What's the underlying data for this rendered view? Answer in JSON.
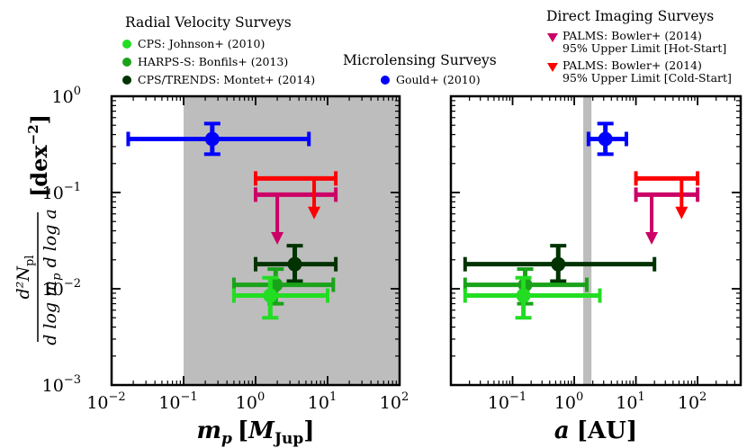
{
  "chart_data": [
    {
      "type": "scatter",
      "xlabel": "m_p [M_Jup]",
      "xlabel_main": "m",
      "xlabel_sub": "p",
      "xlabel_bracket_open": "[",
      "xlabel_unit": "M",
      "xlabel_unit_sub": "Jup",
      "xlabel_bracket_close": "]",
      "xscale": "log",
      "yscale": "log",
      "xlim": [
        0.01,
        100
      ],
      "ylim": [
        0.001,
        1
      ],
      "xticks": [
        {
          "base": "10",
          "exp": "−2"
        },
        {
          "base": "10",
          "exp": "−1"
        },
        {
          "base": "10",
          "exp": "0"
        },
        {
          "base": "10",
          "exp": "1"
        },
        {
          "base": "10",
          "exp": "2"
        }
      ],
      "yticks": [
        {
          "base": "10",
          "exp": "0"
        },
        {
          "base": "10",
          "exp": "−1"
        },
        {
          "base": "10",
          "exp": "−2"
        },
        {
          "base": "10",
          "exp": "−3"
        }
      ],
      "shaded_region": {
        "x": [
          0.1,
          100
        ],
        "color": "#bdbdbd"
      },
      "points": [
        {
          "series": "Gould+ (2010)",
          "x": 0.25,
          "xerr": [
            0.017,
            5.5
          ],
          "y": 0.36,
          "yerr": [
            0.25,
            0.52
          ],
          "color": "#0000ff",
          "upper_limit": false
        },
        {
          "series": "Montet+ (2014)",
          "x": 3.5,
          "xerr": [
            1.0,
            13.0
          ],
          "y": 0.018,
          "yerr": [
            0.012,
            0.028
          ],
          "color": "#003300",
          "upper_limit": false
        },
        {
          "series": "Bonfils+ (2013)",
          "x": 1.9,
          "xerr": [
            0.5,
            12.0
          ],
          "y": 0.011,
          "yerr": [
            0.007,
            0.016
          ],
          "color": "#1aa31a",
          "upper_limit": false
        },
        {
          "series": "Johnson+ (2010)",
          "x": 1.6,
          "xerr": [
            0.5,
            10.0
          ],
          "y": 0.0085,
          "yerr": [
            0.005,
            0.013
          ],
          "color": "#22dd22",
          "upper_limit": false
        },
        {
          "series": "Bowler+ (2014) Hot-Start",
          "x": 2.0,
          "xerr": [
            1.0,
            13.0
          ],
          "y": 0.095,
          "arrow_to": 0.03,
          "color": "#cc0066",
          "upper_limit": true
        },
        {
          "series": "Bowler+ (2014) Cold-Start",
          "x": 6.5,
          "xerr": [
            1.0,
            13.0
          ],
          "y": 0.14,
          "arrow_to": 0.055,
          "color": "#ff0000",
          "upper_limit": true
        }
      ]
    },
    {
      "type": "scatter",
      "xlabel": "a [AU]",
      "xlabel_main": "a",
      "xlabel_bracket_open": "[",
      "xlabel_unit": "AU",
      "xlabel_bracket_close": "]",
      "xscale": "log",
      "yscale": "log",
      "xlim": [
        0.01,
        500
      ],
      "ylim": [
        0.001,
        1
      ],
      "xticks": [
        {
          "base": "10",
          "exp": "−1"
        },
        {
          "base": "10",
          "exp": "0"
        },
        {
          "base": "10",
          "exp": "1"
        },
        {
          "base": "10",
          "exp": "2"
        }
      ],
      "shaded_region": {
        "x": [
          1.4,
          1.9
        ],
        "color": "#bdbdbd"
      },
      "points": [
        {
          "series": "Gould+ (2010)",
          "x": 3.2,
          "xerr": [
            1.7,
            7.0
          ],
          "y": 0.36,
          "yerr": [
            0.25,
            0.52
          ],
          "color": "#0000ff",
          "upper_limit": false
        },
        {
          "series": "Montet+ (2014)",
          "x": 0.55,
          "xerr": [
            0.017,
            20.0
          ],
          "y": 0.018,
          "yerr": [
            0.012,
            0.028
          ],
          "color": "#003300",
          "upper_limit": false
        },
        {
          "series": "Bonfils+ (2013)",
          "x": 0.16,
          "xerr": [
            0.017,
            1.6
          ],
          "y": 0.011,
          "yerr": [
            0.007,
            0.016
          ],
          "color": "#1aa31a",
          "upper_limit": false
        },
        {
          "series": "Johnson+ (2010)",
          "x": 0.15,
          "xerr": [
            0.017,
            2.6
          ],
          "y": 0.0085,
          "yerr": [
            0.005,
            0.013
          ],
          "color": "#22dd22",
          "upper_limit": false
        },
        {
          "series": "Bowler+ (2014) Hot-Start",
          "x": 18,
          "xerr": [
            10,
            100
          ],
          "y": 0.095,
          "arrow_to": 0.03,
          "color": "#cc0066",
          "upper_limit": true
        },
        {
          "series": "Bowler+ (2014) Cold-Start",
          "x": 55,
          "xerr": [
            10,
            100
          ],
          "y": 0.14,
          "arrow_to": 0.055,
          "color": "#ff0000",
          "upper_limit": true
        }
      ]
    }
  ],
  "ylabel": {
    "numerator": "d²N",
    "numerator_sub": "pl",
    "denominator": "d log m",
    "denominator_sub": "p",
    "denominator_tail": " d log a",
    "unit": "[dex",
    "unit_exp": "−2",
    "unit_close": "]"
  },
  "legends": {
    "rv": {
      "title": "Radial Velocity Surveys",
      "entries": [
        {
          "label": "CPS: Johnson+ (2010)",
          "color": "#22dd22",
          "marker": "circle"
        },
        {
          "label": "HARPS-S: Bonfils+ (2013)",
          "color": "#1aa31a",
          "marker": "circle"
        },
        {
          "label": "CPS/TRENDS: Montet+ (2014)",
          "color": "#003300",
          "marker": "circle"
        }
      ]
    },
    "micro": {
      "title": "Microlensing Surveys",
      "entries": [
        {
          "label": "Gould+ (2010)",
          "color": "#0000ff",
          "marker": "circle"
        }
      ]
    },
    "di": {
      "title": "Direct Imaging Surveys",
      "entries": [
        {
          "label": "PALMS: Bowler+ (2014)",
          "label2": "95% Upper Limit [Hot-Start]",
          "color": "#cc0066",
          "marker": "triangle-down"
        },
        {
          "label": "PALMS: Bowler+ (2014)",
          "label2": "95% Upper Limit [Cold-Start]",
          "color": "#ff0000",
          "marker": "triangle-down"
        }
      ]
    }
  }
}
